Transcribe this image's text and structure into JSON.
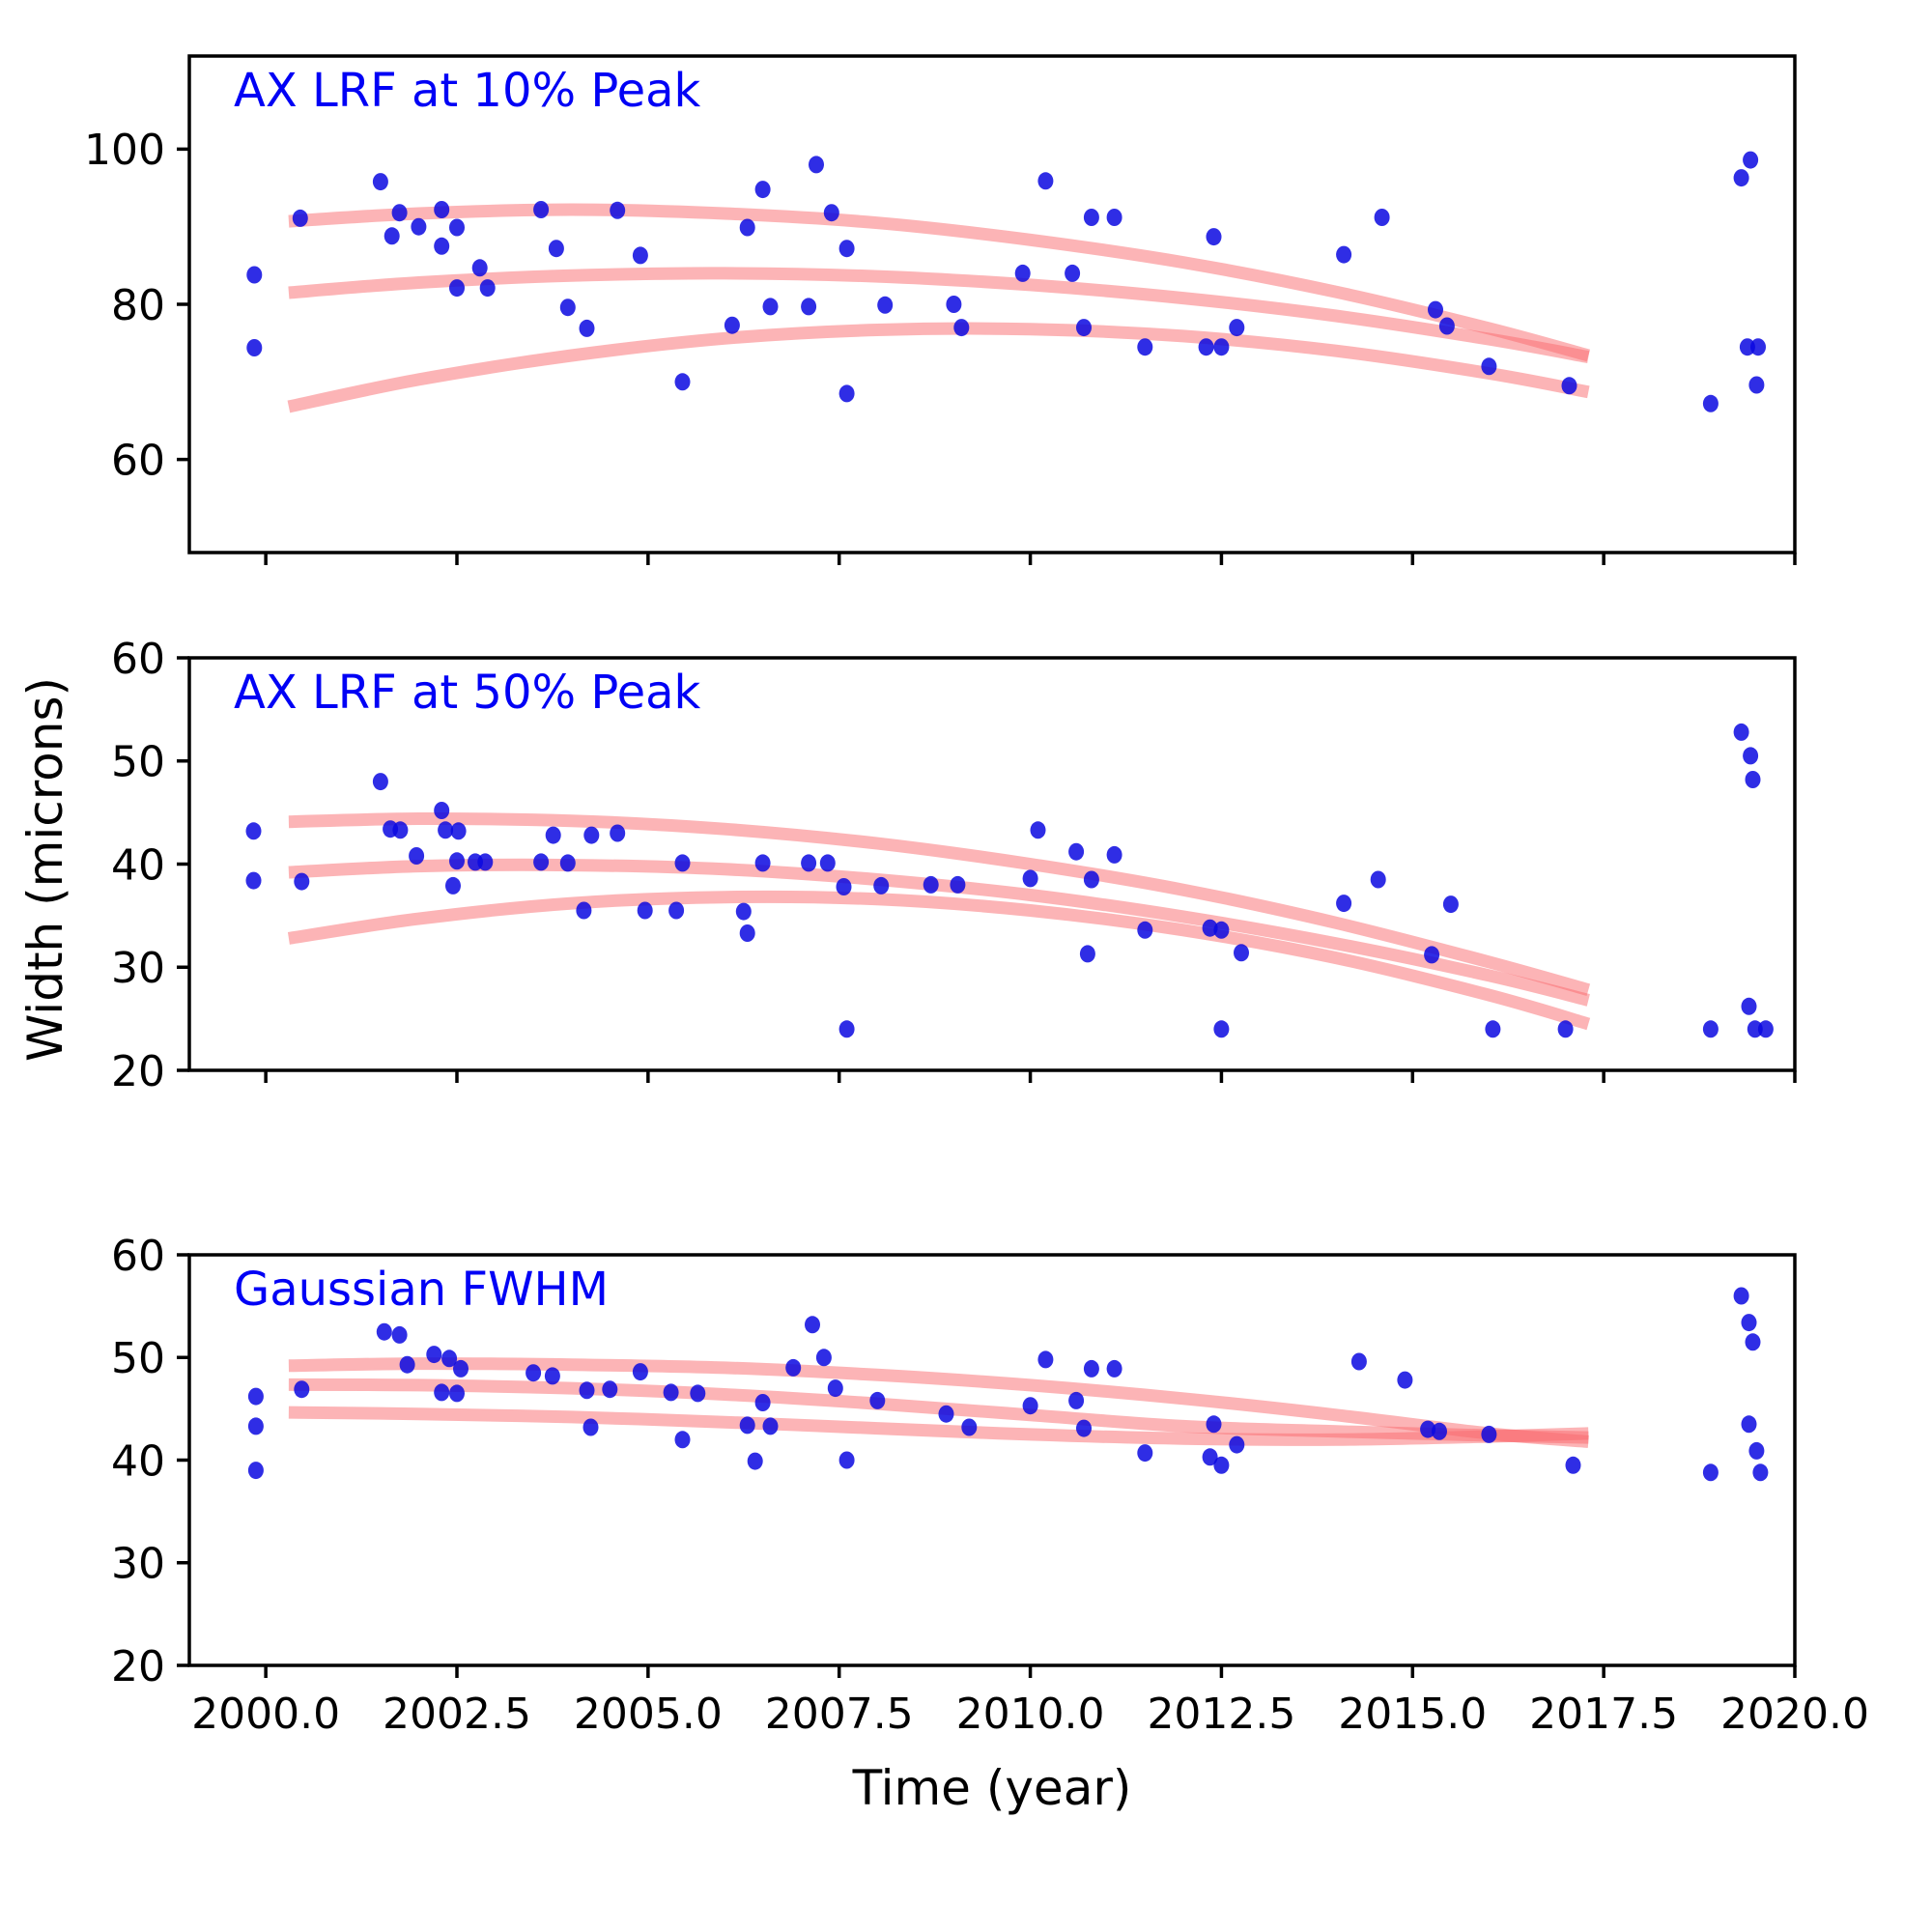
{
  "figure": {
    "background": "#ffffff"
  },
  "shared": {
    "xlabel": "Time (year)",
    "ylabel": "Width (microns)",
    "xlim": [
      1999.0,
      2020.0
    ],
    "x_ticks": [
      2000.0,
      2002.5,
      2005.0,
      2007.5,
      2010.0,
      2012.5,
      2015.0,
      2017.5,
      2020.0
    ],
    "x_tick_decimals": 1,
    "dot_color": "#0a08e0",
    "dot_opacity": 0.85,
    "curve_color": "#fa696e",
    "curve_opacity": 0.5,
    "title_color": "#0000f5",
    "axis_color": "#000000"
  },
  "chart_data": [
    {
      "type": "scatter",
      "title": "AX LRF at 10% Peak",
      "ylim": [
        48,
        112
      ],
      "yticks": [
        60,
        80,
        100
      ],
      "show_x_tick_labels": false,
      "scatter_x": [
        1999.85,
        1999.85,
        2000.45,
        2001.5,
        2001.65,
        2001.75,
        2002.0,
        2002.3,
        2002.3,
        2002.5,
        2002.5,
        2002.8,
        2002.9,
        2003.6,
        2003.8,
        2003.95,
        2004.2,
        2004.6,
        2004.9,
        2005.45,
        2006.1,
        2006.3,
        2006.5,
        2006.6,
        2007.1,
        2007.2,
        2007.4,
        2007.6,
        2007.6,
        2008.1,
        2009.0,
        2009.1,
        2009.9,
        2010.2,
        2010.55,
        2010.7,
        2010.8,
        2011.1,
        2011.5,
        2012.3,
        2012.4,
        2012.5,
        2012.7,
        2014.1,
        2014.6,
        2015.3,
        2015.45,
        2016.0,
        2017.05,
        2018.9,
        2019.3,
        2019.38,
        2019.42,
        2019.52,
        2019.5
      ],
      "scatter_y": [
        83.8,
        74.4,
        91.1,
        95.8,
        88.8,
        91.8,
        90.0,
        92.2,
        87.5,
        89.9,
        82.1,
        84.7,
        82.1,
        92.2,
        87.2,
        79.6,
        76.9,
        92.1,
        86.3,
        70.0,
        77.3,
        89.9,
        94.8,
        79.7,
        79.7,
        98.0,
        91.8,
        87.2,
        68.5,
        79.9,
        80.0,
        77.0,
        84.0,
        95.9,
        84.0,
        77.0,
        91.2,
        91.2,
        74.5,
        74.5,
        88.7,
        74.5,
        77.0,
        86.4,
        91.2,
        79.3,
        77.2,
        72.0,
        69.5,
        67.2,
        96.3,
        74.5,
        98.6,
        74.5,
        69.6
      ],
      "curves": [
        {
          "x": [
            2000.3,
            2002,
            2004,
            2006,
            2008,
            2010,
            2012,
            2014,
            2016,
            2017.3
          ],
          "y": [
            90.7,
            91.7,
            92.2,
            91.7,
            90.5,
            88.3,
            85.4,
            81.6,
            76.9,
            73.4
          ]
        },
        {
          "x": [
            2000.3,
            2002,
            2004,
            2006,
            2008,
            2010,
            2012,
            2014,
            2016,
            2017.3
          ],
          "y": [
            81.5,
            82.8,
            83.7,
            84.0,
            83.6,
            82.5,
            80.8,
            78.5,
            75.5,
            73.2
          ]
        },
        {
          "x": [
            2000.3,
            2002,
            2004,
            2006,
            2008,
            2010,
            2012,
            2014,
            2016,
            2017.3
          ],
          "y": [
            66.8,
            70.3,
            73.4,
            75.6,
            76.7,
            76.8,
            75.9,
            74.0,
            71.1,
            68.7
          ]
        }
      ]
    },
    {
      "type": "scatter",
      "title": "AX LRF at 50% Peak",
      "ylim": [
        20,
        60
      ],
      "yticks": [
        20,
        30,
        40,
        50,
        60
      ],
      "show_x_tick_labels": false,
      "scatter_x": [
        1999.84,
        1999.84,
        2000.47,
        2001.5,
        2001.63,
        2001.76,
        2001.97,
        2002.3,
        2002.35,
        2002.52,
        2002.5,
        2002.74,
        2002.87,
        2002.45,
        2003.6,
        2003.95,
        2003.76,
        2004.26,
        2004.6,
        2004.16,
        2004.96,
        2005.37,
        2005.45,
        2006.25,
        2006.3,
        2006.5,
        2007.1,
        2007.35,
        2007.56,
        2007.6,
        2008.05,
        2008.7,
        2009.05,
        2010.1,
        2010.0,
        2010.6,
        2010.8,
        2010.75,
        2011.1,
        2011.5,
        2012.35,
        2012.5,
        2012.5,
        2012.76,
        2014.1,
        2014.55,
        2015.25,
        2015.5,
        2016.05,
        2017.0,
        2018.9,
        2019.3,
        2019.42,
        2019.45,
        2019.4,
        2019.48,
        2019.62
      ],
      "scatter_y": [
        43.2,
        38.4,
        38.3,
        48.0,
        43.4,
        43.3,
        40.8,
        45.2,
        43.3,
        43.2,
        40.3,
        40.2,
        40.2,
        37.9,
        40.2,
        40.1,
        42.8,
        42.8,
        43.0,
        35.5,
        35.5,
        35.5,
        40.1,
        35.4,
        33.3,
        40.1,
        40.1,
        40.1,
        37.8,
        24.0,
        37.9,
        38.0,
        38.0,
        43.3,
        38.6,
        41.2,
        38.5,
        31.3,
        40.9,
        33.6,
        33.8,
        33.6,
        24.0,
        31.4,
        36.2,
        38.5,
        31.2,
        36.1,
        24.0,
        24.0,
        24.0,
        52.8,
        50.5,
        48.2,
        26.2,
        24.0,
        24.0
      ],
      "curves": [
        {
          "x": [
            2000.3,
            2002,
            2004,
            2006,
            2008,
            2010,
            2012,
            2014,
            2016,
            2017.3
          ],
          "y": [
            44.1,
            44.4,
            44.2,
            43.4,
            42.0,
            40.0,
            37.5,
            34.3,
            30.5,
            27.8
          ]
        },
        {
          "x": [
            2000.3,
            2002,
            2004,
            2006,
            2008,
            2010,
            2012,
            2014,
            2016,
            2017.3
          ],
          "y": [
            39.2,
            39.8,
            39.9,
            39.5,
            38.5,
            37.0,
            34.9,
            32.3,
            29.2,
            26.8
          ]
        },
        {
          "x": [
            2000.3,
            2002,
            2004,
            2006,
            2008,
            2010,
            2012,
            2014,
            2016,
            2017.3
          ],
          "y": [
            32.8,
            34.7,
            36.2,
            36.8,
            36.6,
            35.5,
            33.6,
            30.9,
            27.3,
            24.5
          ]
        }
      ]
    },
    {
      "type": "scatter",
      "title": "Gaussian FWHM",
      "ylim": [
        20,
        60
      ],
      "yticks": [
        20,
        30,
        40,
        50,
        60
      ],
      "show_x_tick_labels": true,
      "scatter_x": [
        1999.87,
        1999.87,
        1999.87,
        2000.47,
        2001.55,
        2001.75,
        2001.85,
        2002.2,
        2002.3,
        2002.4,
        2002.55,
        2002.5,
        2003.5,
        2003.75,
        2004.2,
        2004.25,
        2004.5,
        2004.9,
        2005.3,
        2005.45,
        2005.65,
        2006.3,
        2006.4,
        2006.5,
        2006.6,
        2006.9,
        2007.15,
        2007.3,
        2007.45,
        2007.6,
        2008.0,
        2008.9,
        2009.2,
        2010.0,
        2010.2,
        2010.6,
        2010.7,
        2010.8,
        2011.1,
        2011.5,
        2012.35,
        2012.4,
        2012.5,
        2012.7,
        2014.3,
        2014.9,
        2015.2,
        2015.35,
        2016.0,
        2017.1,
        2018.9,
        2019.3,
        2019.4,
        2019.45,
        2019.4,
        2019.5,
        2019.55
      ],
      "scatter_y": [
        46.2,
        43.3,
        39.0,
        46.9,
        52.5,
        52.2,
        49.3,
        50.3,
        46.6,
        49.9,
        48.9,
        46.5,
        48.5,
        48.2,
        46.8,
        43.2,
        46.9,
        48.6,
        46.6,
        42.0,
        46.5,
        43.4,
        39.9,
        45.6,
        43.3,
        49.0,
        53.2,
        50.0,
        47.0,
        40.0,
        45.8,
        44.5,
        43.2,
        45.3,
        49.8,
        45.8,
        43.1,
        48.9,
        48.9,
        40.7,
        40.3,
        43.5,
        39.5,
        41.5,
        49.6,
        47.8,
        43.0,
        42.8,
        42.5,
        39.5,
        38.8,
        56.0,
        53.4,
        51.5,
        43.5,
        40.9,
        38.8
      ],
      "curves": [
        {
          "x": [
            2000.3,
            2002,
            2004,
            2006,
            2008,
            2010,
            2012,
            2014,
            2016,
            2017.3
          ],
          "y": [
            49.2,
            49.4,
            49.3,
            49.0,
            48.3,
            47.3,
            46.0,
            44.4,
            42.6,
            41.8
          ]
        },
        {
          "x": [
            2000.3,
            2002,
            2004,
            2006,
            2008,
            2010,
            2012,
            2014,
            2016,
            2017.3
          ],
          "y": [
            47.35,
            47.3,
            47.0,
            46.4,
            45.5,
            44.4,
            43.3,
            42.8,
            42.4,
            42.2
          ]
        },
        {
          "x": [
            2000.3,
            2002,
            2004,
            2006,
            2008,
            2010,
            2012,
            2014,
            2016,
            2017.3
          ],
          "y": [
            44.65,
            44.5,
            44.2,
            43.7,
            43.1,
            42.5,
            42.1,
            42.0,
            42.3,
            42.6
          ]
        }
      ]
    }
  ]
}
